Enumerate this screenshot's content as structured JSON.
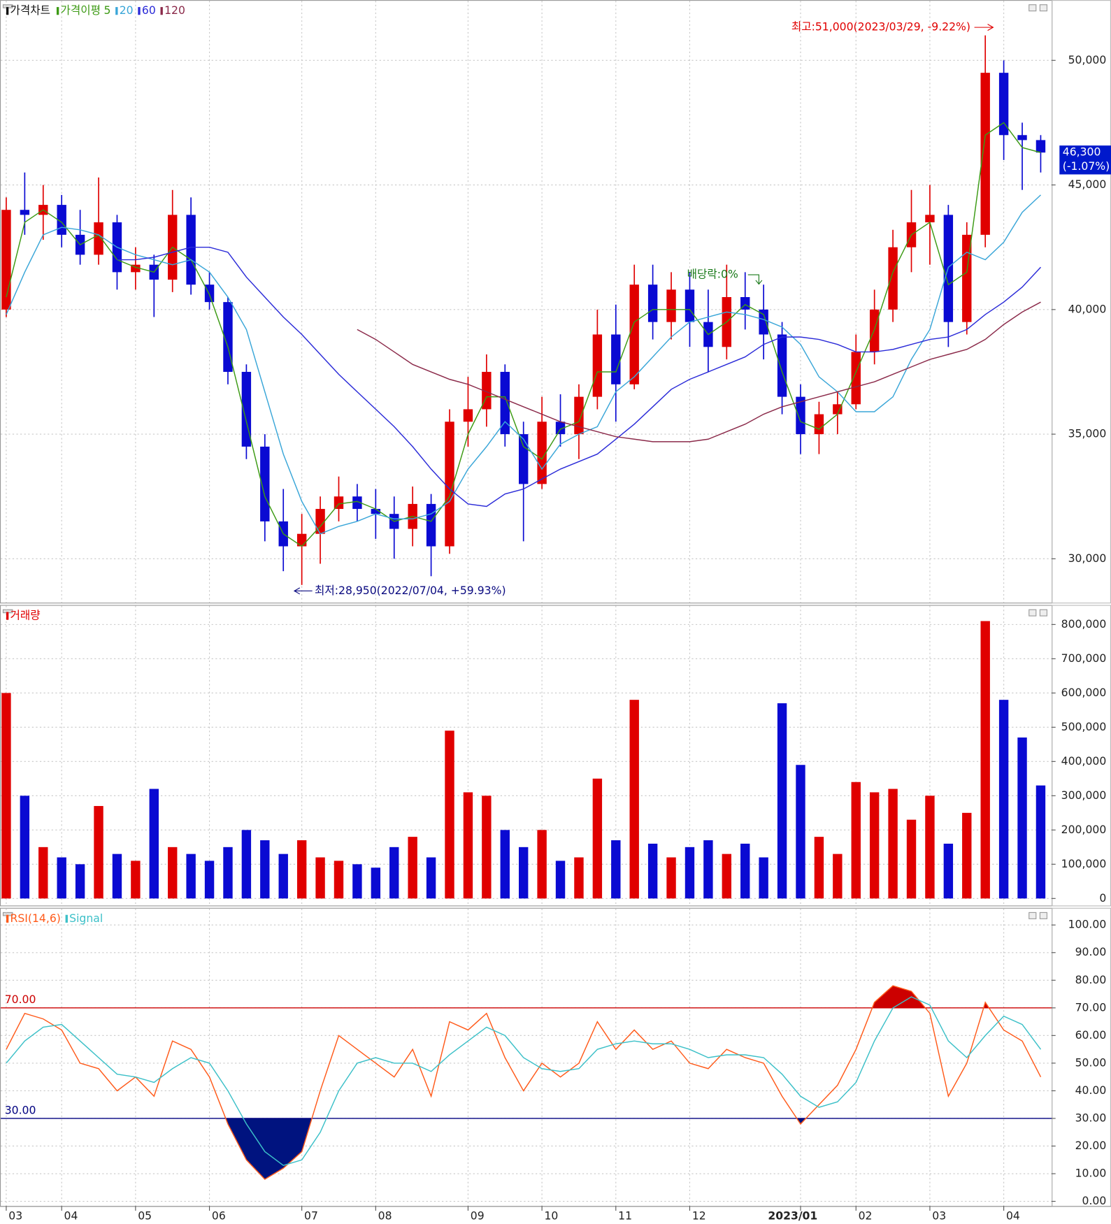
{
  "chart_data": [
    {
      "type": "candlestick",
      "title": "가격차트",
      "ma_title": "가격이평",
      "open": [
        40000,
        44000,
        43800,
        44200,
        43000,
        42200,
        43500,
        41500,
        41800,
        41200,
        43800,
        41000,
        40300,
        37500,
        34500,
        31500,
        30500,
        31000,
        32000,
        32500,
        32000,
        31800,
        31200,
        32200,
        30500,
        35500,
        36000,
        37500,
        35000,
        33000,
        35500,
        35000,
        36500,
        39000,
        37000,
        41000,
        39500,
        40800,
        39500,
        38500,
        40500,
        40000,
        39000,
        36500,
        35000,
        35800,
        36200,
        38300,
        40000,
        42500,
        43500,
        43800,
        39500,
        43000,
        49500,
        47000,
        46800
      ],
      "high": [
        44500,
        45500,
        45000,
        44600,
        44000,
        45300,
        43800,
        42500,
        42200,
        44800,
        44500,
        41500,
        40500,
        37800,
        35000,
        32800,
        31800,
        32500,
        33300,
        33000,
        32800,
        32500,
        32900,
        32600,
        36000,
        37300,
        38200,
        37800,
        35500,
        36500,
        36600,
        37000,
        40000,
        40200,
        41800,
        41800,
        41500,
        41500,
        40800,
        41800,
        41500,
        41000,
        39500,
        37000,
        36300,
        36700,
        39000,
        40800,
        43200,
        44800,
        45000,
        44200,
        43500,
        51000,
        50000,
        47500,
        47000
      ],
      "low": [
        39700,
        43000,
        42800,
        42500,
        41800,
        41800,
        40800,
        40800,
        39700,
        40700,
        40600,
        40000,
        37000,
        34000,
        30700,
        29500,
        28950,
        29800,
        31500,
        31500,
        30800,
        30000,
        30500,
        29300,
        30200,
        34500,
        35300,
        34500,
        30700,
        32800,
        34500,
        34000,
        36000,
        35500,
        36800,
        38800,
        38800,
        38500,
        37500,
        38000,
        39200,
        38000,
        35800,
        34200,
        34200,
        35000,
        36000,
        37800,
        39500,
        41500,
        41800,
        38500,
        39000,
        42500,
        46000,
        44800,
        45500
      ],
      "close": [
        44000,
        43800,
        44200,
        43000,
        42200,
        43500,
        41500,
        41800,
        41200,
        43800,
        41000,
        40300,
        37500,
        34500,
        31500,
        30500,
        31000,
        32000,
        32500,
        32000,
        31800,
        31200,
        32200,
        30500,
        35500,
        36000,
        37500,
        35000,
        33000,
        35500,
        35000,
        36500,
        39000,
        37000,
        41000,
        39500,
        40800,
        39500,
        38500,
        40500,
        40000,
        39000,
        36500,
        35000,
        35800,
        36200,
        38300,
        40000,
        42500,
        43500,
        43800,
        39500,
        43000,
        49500,
        47000,
        46800,
        46300
      ],
      "up_color": "#e00000",
      "down_color": "#0a0ad2",
      "series": [
        {
          "name": "5",
          "color": "#3c9a14",
          "values": [
            40500,
            43500,
            44000,
            43500,
            42600,
            43000,
            42000,
            41700,
            41500,
            42500,
            42000,
            40600,
            38500,
            35500,
            32500,
            31000,
            30500,
            31300,
            32200,
            32300,
            32000,
            31500,
            31700,
            31500,
            32500,
            35000,
            36500,
            36500,
            34500,
            34000,
            35200,
            35500,
            37500,
            37500,
            39500,
            40000,
            40000,
            40000,
            39000,
            39500,
            40200,
            39800,
            37500,
            35500,
            35200,
            35800,
            37500,
            39200,
            41500,
            43000,
            43500,
            41000,
            41500,
            47000,
            47500,
            46500,
            46300
          ]
        },
        {
          "name": "20",
          "color": "#3aa6d8",
          "values": [
            39800,
            41500,
            43000,
            43300,
            43200,
            43000,
            42500,
            42200,
            42000,
            41800,
            42000,
            41500,
            40500,
            39200,
            36700,
            34200,
            32300,
            31000,
            31300,
            31500,
            31800,
            31600,
            31600,
            31800,
            32300,
            33600,
            34500,
            35500,
            34800,
            33600,
            34600,
            35000,
            35300,
            36700,
            37300,
            38100,
            38900,
            39500,
            39700,
            39900,
            39800,
            39600,
            39300,
            38600,
            37300,
            36700,
            35900,
            35900,
            36500,
            38000,
            39200,
            41700,
            42300,
            42000,
            42700,
            43900,
            44600
          ]
        },
        {
          "name": "60",
          "color": "#2b2bd8",
          "values": [
            null,
            null,
            null,
            null,
            null,
            null,
            42000,
            42000,
            42100,
            42300,
            42500,
            42500,
            42300,
            41300,
            40500,
            39700,
            39000,
            38200,
            37400,
            36700,
            36000,
            35300,
            34500,
            33600,
            32800,
            32200,
            32100,
            32600,
            32800,
            33200,
            33600,
            33900,
            34200,
            34800,
            35400,
            36100,
            36800,
            37200,
            37500,
            37800,
            38100,
            38600,
            38900,
            38900,
            38800,
            38600,
            38300,
            38300,
            38400,
            38600,
            38800,
            38900,
            39200,
            39800,
            40300,
            40900,
            41700
          ]
        },
        {
          "name": "120",
          "color": "#8b2a4a",
          "values": [
            null,
            null,
            null,
            null,
            null,
            null,
            null,
            null,
            null,
            null,
            null,
            null,
            null,
            null,
            null,
            null,
            null,
            null,
            null,
            39200,
            38800,
            38300,
            37800,
            37500,
            37200,
            37000,
            36700,
            36400,
            36100,
            35800,
            35500,
            35300,
            35100,
            34900,
            34800,
            34700,
            34700,
            34700,
            34800,
            35100,
            35400,
            35800,
            36100,
            36300,
            36500,
            36700,
            36900,
            37100,
            37400,
            37700,
            38000,
            38200,
            38400,
            38800,
            39400,
            39900,
            40300
          ]
        }
      ],
      "ylim": [
        28240,
        52420
      ],
      "yticks": [
        {
          "value": 30000,
          "label": "30,000"
        },
        {
          "value": 35000,
          "label": "35,000"
        },
        {
          "value": 40000,
          "label": "40,000"
        },
        {
          "value": 45000,
          "label": "45,000"
        },
        {
          "value": 50000,
          "label": "50,000"
        }
      ],
      "grid": true,
      "annotations": [
        "최고:51,000(2023/03/29, -9.22%)",
        "최저:28,950(2022/07/04, +59.93%)",
        "배당락:0%"
      ],
      "last_price": "46,300",
      "last_change": "(-1.07%)",
      "last_color": "#0019cc"
    },
    {
      "type": "bar",
      "title": "거래량",
      "title_color": "#e00000",
      "values": [
        600000,
        300000,
        150000,
        120000,
        100000,
        270000,
        130000,
        110000,
        320000,
        150000,
        130000,
        110000,
        150000,
        200000,
        170000,
        130000,
        170000,
        120000,
        110000,
        100000,
        90000,
        150000,
        180000,
        120000,
        490000,
        310000,
        300000,
        200000,
        150000,
        200000,
        110000,
        120000,
        350000,
        170000,
        580000,
        160000,
        120000,
        150000,
        170000,
        130000,
        160000,
        120000,
        570000,
        390000,
        180000,
        130000,
        340000,
        310000,
        320000,
        230000,
        300000,
        160000,
        250000,
        810000,
        580000,
        470000,
        330000
      ],
      "ylim": [
        -20500,
        857000
      ],
      "yticks": [
        0,
        {
          "value": 100000,
          "label": "100,000"
        },
        {
          "value": 200000,
          "label": "200,000"
        },
        {
          "value": 300000,
          "label": "300,000"
        },
        {
          "value": 400000,
          "label": "400,000"
        },
        {
          "value": 500000,
          "label": "500,000"
        },
        {
          "value": 600000,
          "label": "600,000"
        },
        {
          "value": 700000,
          "label": "700,000"
        },
        {
          "value": 800000,
          "label": "800,000"
        }
      ],
      "grid": true
    },
    {
      "type": "line",
      "categories": [
        "03",
        null,
        null,
        "04",
        null,
        null,
        null,
        "05",
        null,
        null,
        null,
        "06",
        null,
        null,
        null,
        null,
        "07",
        null,
        null,
        null,
        "08",
        null,
        null,
        null,
        null,
        "09",
        null,
        null,
        null,
        "10",
        null,
        null,
        null,
        "11",
        null,
        null,
        null,
        "12",
        null,
        null,
        null,
        null,
        null,
        "2023/01",
        null,
        null,
        "02",
        null,
        null,
        null,
        "03",
        null,
        null,
        null,
        "04",
        null,
        null
      ],
      "series": [
        {
          "name": "RSI(14,6)",
          "color": "#ff5a1a",
          "values": [
            55,
            68,
            66,
            62,
            50,
            48,
            40,
            45,
            38,
            58,
            55,
            45,
            28,
            15,
            8,
            12,
            18,
            40,
            60,
            55,
            50,
            45,
            55,
            38,
            65,
            62,
            68,
            52,
            40,
            50,
            45,
            50,
            65,
            55,
            62,
            55,
            58,
            50,
            48,
            55,
            52,
            50,
            38,
            28,
            35,
            42,
            55,
            72,
            78,
            76,
            68,
            38,
            50,
            72,
            62,
            58,
            45
          ]
        },
        {
          "name": "Signal",
          "color": "#3cc0c8",
          "values": [
            50,
            58,
            63,
            64,
            58,
            52,
            46,
            45,
            43,
            48,
            52,
            50,
            40,
            28,
            18,
            13,
            15,
            25,
            40,
            50,
            52,
            50,
            50,
            47,
            53,
            58,
            63,
            60,
            52,
            48,
            47,
            48,
            55,
            57,
            58,
            57,
            57,
            55,
            52,
            53,
            53,
            52,
            46,
            38,
            34,
            36,
            43,
            58,
            70,
            74,
            71,
            58,
            52,
            60,
            67,
            64,
            55
          ]
        }
      ],
      "levels": [
        {
          "value": 70,
          "label": "70.00",
          "color": "#cc0000",
          "fill": "#cc0000"
        },
        {
          "value": 30,
          "label": "30.00",
          "color": "#000080",
          "fill": "#00137f"
        }
      ],
      "ylim": [
        -1.7,
        106.2
      ],
      "yticks": [
        {
          "value": 0,
          "label": "0.00"
        },
        {
          "value": 10,
          "label": "10.00"
        },
        {
          "value": 20,
          "label": "20.00"
        },
        {
          "value": 30,
          "label": "30.00"
        },
        {
          "value": 40,
          "label": "40.00"
        },
        {
          "value": 50,
          "label": "50.00"
        },
        {
          "value": 60,
          "label": "60.00"
        },
        {
          "value": 70,
          "label": "70.00"
        },
        {
          "value": 80,
          "label": "80.00"
        },
        {
          "value": 90,
          "label": "90.00"
        },
        {
          "value": 100,
          "label": "100.00"
        }
      ],
      "grid": true
    }
  ]
}
